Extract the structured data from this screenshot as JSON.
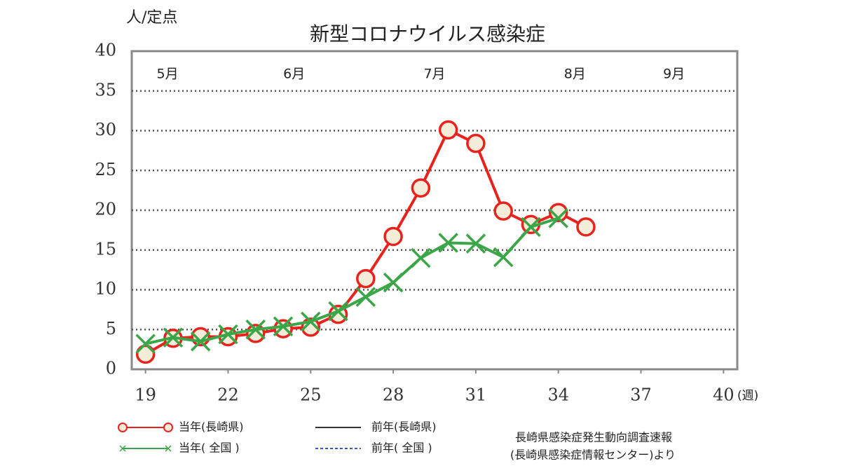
{
  "chart_data": {
    "type": "line",
    "title": "新型コロナウイルス感染症",
    "y_label": "人/定点",
    "x_label": "(週)",
    "x": [
      19,
      20,
      21,
      22,
      23,
      24,
      25,
      26,
      27,
      28,
      29,
      30,
      31,
      32,
      33,
      34,
      35
    ],
    "series": [
      {
        "name": "当年(長崎県)",
        "color": "#e8231e",
        "marker": "circle",
        "style": "solid",
        "values": [
          1.9,
          3.9,
          4.1,
          4.1,
          4.5,
          5.1,
          5.3,
          6.9,
          11.4,
          16.7,
          22.8,
          30.1,
          28.4,
          19.9,
          18.2,
          19.7,
          17.9
        ]
      },
      {
        "name": "当年( 全国 )",
        "color": "#3aa648",
        "marker": "x",
        "style": "solid",
        "values": [
          3.2,
          4.0,
          3.5,
          4.4,
          5.0,
          5.4,
          6.0,
          7.3,
          9.1,
          10.9,
          14.0,
          15.9,
          15.8,
          14.1,
          17.9,
          19.0,
          null
        ]
      },
      {
        "name": "前年(長崎県)",
        "color": "#333333",
        "marker": "none",
        "style": "solid",
        "values": [
          null,
          null,
          null,
          null,
          null,
          null,
          null,
          null,
          null,
          null,
          null,
          null,
          null,
          null,
          null,
          null,
          null
        ]
      },
      {
        "name": "前年( 全国 )",
        "color": "#3355cc",
        "marker": "none",
        "style": "dashed",
        "values": [
          null,
          null,
          null,
          null,
          null,
          null,
          null,
          null,
          null,
          null,
          null,
          null,
          null,
          null,
          null,
          null,
          null
        ]
      }
    ],
    "xlim": [
      18.5,
      40.5
    ],
    "xticks": [
      19,
      22,
      25,
      28,
      31,
      34,
      37,
      40
    ],
    "ylim": [
      0,
      40
    ],
    "yticks": [
      0,
      5,
      10,
      15,
      20,
      25,
      30,
      35,
      40
    ],
    "grid": true,
    "month_labels": [
      {
        "text": "5月",
        "x": 19.8
      },
      {
        "text": "6月",
        "x": 24.4
      },
      {
        "text": "7月",
        "x": 29.5
      },
      {
        "text": "8月",
        "x": 34.6
      },
      {
        "text": "9月",
        "x": 38.2
      }
    ],
    "source": [
      "長崎県感染症発生動向調査速報",
      "(長崎県感染症情報センター)より"
    ]
  }
}
